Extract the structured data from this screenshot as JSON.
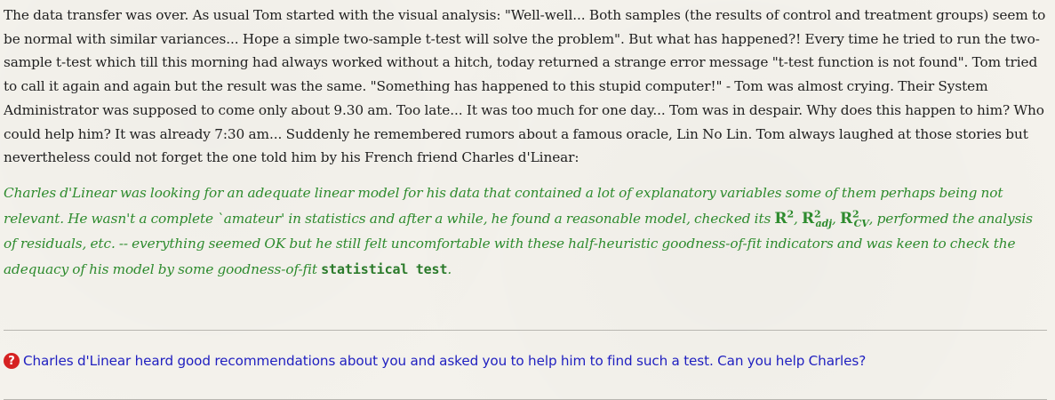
{
  "intro": {
    "text": "The data transfer was over. As usual Tom started with the visual analysis: \"Well-well... Both samples (the results of control and treatment groups) seem to be normal with similar variances... Hope a simple two-sample t-test will solve the problem\". But what has happened?! Every time he tried to run the two-sample t-test which till this morning had always worked without a hitch, today returned a strange error message \"t-test function is not found\". Tom tried to call it again and again but the result was the same. \"Something has happened to this stupid computer!\" - Tom was almost crying. Their System Administrator was supposed to come only about 9.30 am. Too late... It was too much for one day... Tom was in despair. Why does this happen to him? Who could help him? It was already 7:30 am... Suddenly he remembered rumors about a famous oracle, Lin No Lin. Tom always laughed at those stories but nevertheless could not forget the one told him by his French friend Charles d'Linear:"
  },
  "story": {
    "part1": "Charles d'Linear was looking for an adequate linear model for his data that contained a lot of explanatory variables some of them perhaps being not relevant. He wasn't a complete `amateur' in statistics and after a while, he found a reasonable model, checked its ",
    "r": "R",
    "sq": "2",
    "comma1": ", ",
    "adj": "adj",
    "comma2": ", ",
    "cv": "CV",
    "part2": ", performed the analysis of residuals, etc. -- everything seemed OK but he still felt uncomfortable with these half-heuristic goodness-of-fit indicators and was keen to check the adequacy of his model by some goodness-of-fit ",
    "emphasis": "statistical test",
    "end": "."
  },
  "question": {
    "icon": "question-circle-icon",
    "icon_glyph": "?",
    "text": "Charles d'Linear heard good recommendations about you and asked you to help him to find such a test. Can you help Charles?"
  },
  "colors": {
    "background": "#f4f2ec",
    "story_green": "#2e8b2e",
    "link_blue": "#1f1fc0",
    "icon_red": "#d62222"
  }
}
